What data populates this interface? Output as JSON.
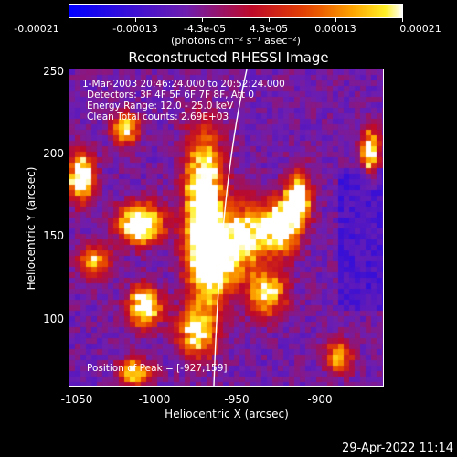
{
  "colorbar": {
    "labels": [
      "-0.00021",
      "-0.00013",
      "-4.3e-05",
      "4.3e-05",
      "0.00013",
      "0.00021"
    ],
    "units": "(photons cm⁻² s⁻¹ asec⁻²)"
  },
  "title": "Reconstructed RHESSI Image",
  "annotations": {
    "time": "1-Mar-2003 20:46:24.000 to 20:52:24.000",
    "detectors": "Detectors: 3F 4F 5F 6F 7F 8F, Att 0",
    "energy": "Energy Range: 12.0 - 25.0 keV",
    "clean": "Clean    Total counts: 2.69E+03",
    "peak": "Position of Peak = [-927,159]"
  },
  "axes": {
    "xlabel": "Heliocentric X (arcsec)",
    "ylabel": "Heliocentric Y (arcsec)",
    "xticks": [
      "-1050",
      "-1000",
      "-950",
      "-900"
    ],
    "yticks": [
      "250",
      "200",
      "150",
      "100"
    ],
    "xlim": [
      -1060,
      -962
    ],
    "ylim": [
      55,
      253
    ]
  },
  "footer": {
    "date": "29-Apr-2022 11:14"
  },
  "colors": {
    "low": "#0000ff",
    "mid": "#6a1ea8",
    "high": "#ffff00"
  }
}
